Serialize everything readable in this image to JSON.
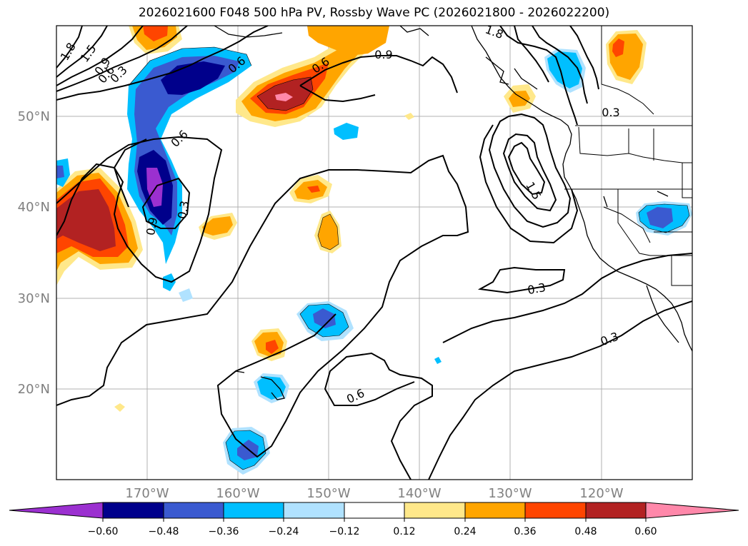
{
  "title": "2026021600 F048 500 hPa PV, Rossby Wave PC (2026021800 - 2026022200)",
  "lat_labels": [
    "50°N",
    "40°N",
    "30°N",
    "20°N"
  ],
  "lon_labels": [
    "170°W",
    "160°W",
    "150°W",
    "140°W",
    "130°W",
    "120°W"
  ],
  "contour_labels": [
    "1.8",
    "1.5",
    "0.9",
    "0.6",
    "0.3",
    "0.6",
    "0.9",
    "1.8",
    "0.3",
    "0.6",
    "0.9",
    "0.6",
    "0.3",
    "1.5",
    "0.6",
    "0.3",
    "0.3"
  ],
  "colorbar": {
    "ticks": [
      "−0.60",
      "−0.48",
      "−0.36",
      "−0.24",
      "−0.12",
      "0.12",
      "0.24",
      "0.36",
      "0.48",
      "0.60"
    ],
    "colors": [
      "#9b30d0",
      "#00008b",
      "#3a5ad0",
      "#00bfff",
      "#b0e2ff",
      "#ffffff",
      "#ffe88a",
      "#ffa500",
      "#ff4500",
      "#b22222",
      "#ff88aa"
    ],
    "levels": [
      -0.6,
      -0.48,
      -0.36,
      -0.24,
      -0.12,
      0.12,
      0.24,
      0.36,
      0.48,
      0.6
    ]
  }
}
